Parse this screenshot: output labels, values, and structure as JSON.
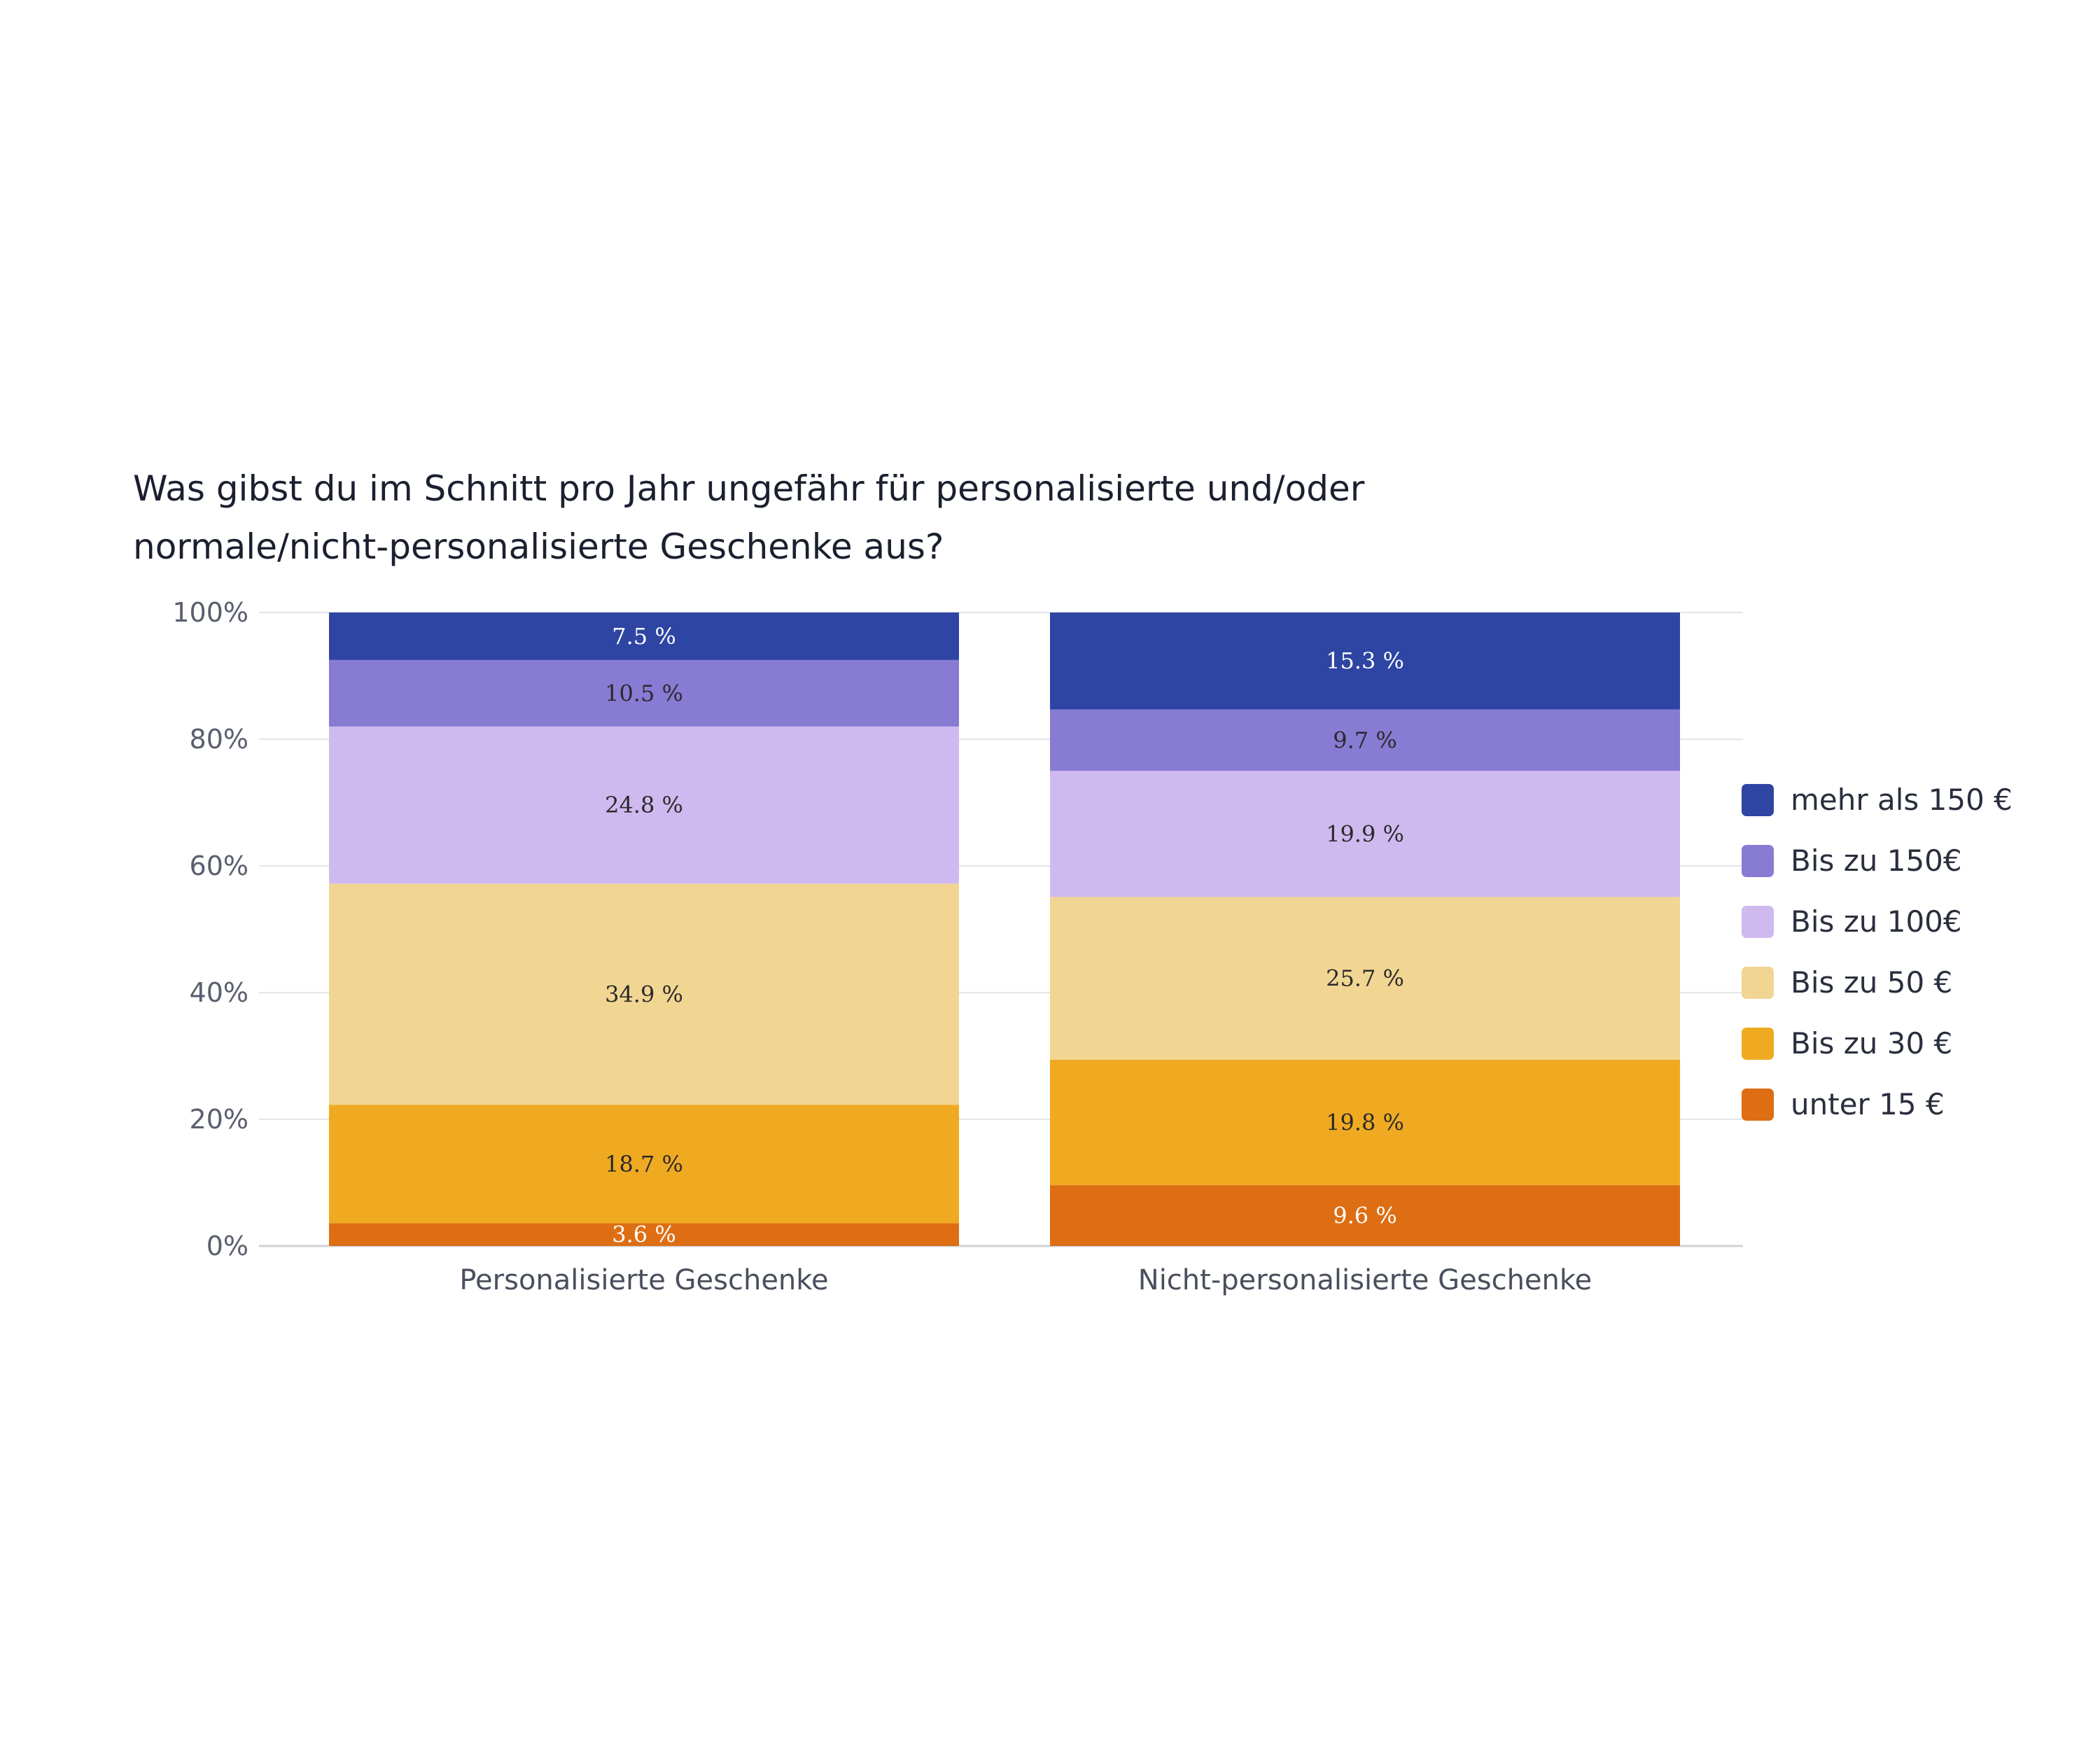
{
  "chart_data": {
    "type": "bar",
    "stacked": true,
    "title_lines": [
      "Was gibst du im Schnitt pro Jahr ungefähr für personalisierte und/oder",
      "normale/nicht-personalisierte Geschenke aus?"
    ],
    "categories": [
      "Personalisierte Geschenke",
      "Nicht-personalisierte Geschenke"
    ],
    "y_ticks": [
      "0%",
      "20%",
      "40%",
      "60%",
      "80%",
      "100%"
    ],
    "y_tick_values": [
      0,
      20,
      40,
      60,
      80,
      100
    ],
    "ylim": [
      0,
      100
    ],
    "xlabel": "",
    "ylabel": "",
    "grid": true,
    "legend_position": "right",
    "series": [
      {
        "name": "unter 15 €",
        "color": "#dd6e14",
        "label_color": "#ffffff",
        "values": [
          3.6,
          9.6
        ],
        "labels": [
          "3.6 %",
          "9.6 %"
        ]
      },
      {
        "name": "Bis zu 30 €",
        "color": "#f0aa22",
        "label_color": "#2a2a2a",
        "values": [
          18.7,
          19.8
        ],
        "labels": [
          "18.7 %",
          "19.8 %"
        ]
      },
      {
        "name": "Bis zu 50 €",
        "color": "#f1d592",
        "label_color": "#2a2a2a",
        "values": [
          34.9,
          25.7
        ],
        "labels": [
          "34.9 %",
          "25.7 %"
        ]
      },
      {
        "name": "Bis zu 100€",
        "color": "#cfbaef",
        "label_color": "#2a2a2a",
        "values": [
          24.8,
          19.9
        ],
        "labels": [
          "24.8 %",
          "19.9 %"
        ]
      },
      {
        "name": "Bis zu 150€",
        "color": "#877bd4",
        "label_color": "#2a2a2a",
        "values": [
          10.5,
          9.7
        ],
        "labels": [
          "10.5 %",
          "9.7 %"
        ]
      },
      {
        "name": "mehr als 150 €",
        "color": "#2e45a3",
        "label_color": "#ffffff",
        "values": [
          7.5,
          15.3
        ],
        "labels": [
          "7.5 %",
          "15.3 %"
        ]
      }
    ],
    "legend_order": [
      "mehr als 150 €",
      "Bis zu 150€",
      "Bis zu 100€",
      "Bis zu 50 €",
      "Bis zu 30 €",
      "unter 15 €"
    ]
  }
}
